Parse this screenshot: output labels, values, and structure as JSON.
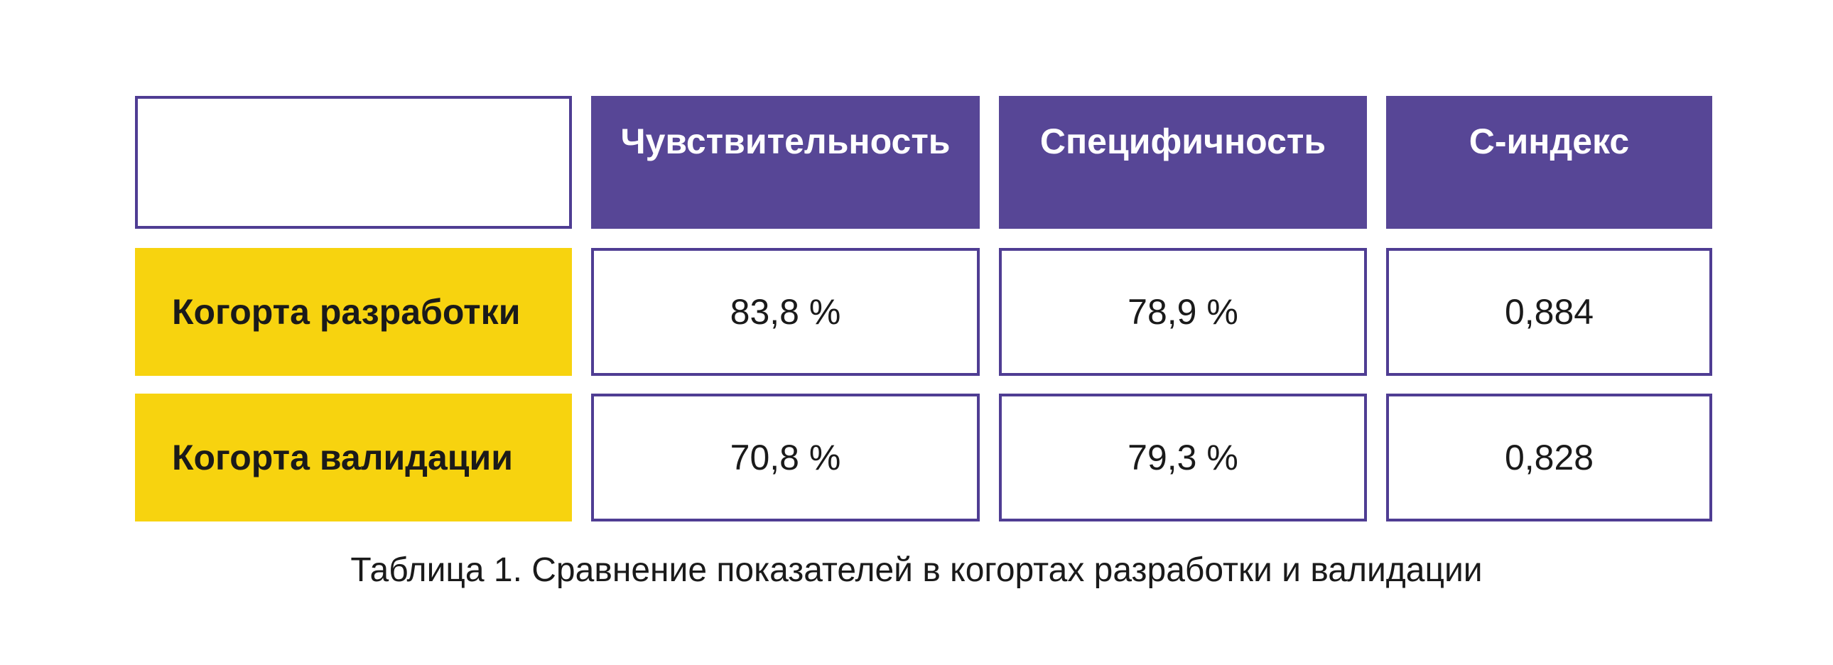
{
  "table": {
    "columns": [
      "Чувствительность",
      "Специфичность",
      "C-индекс"
    ],
    "rows": [
      {
        "label": "Когорта разработки",
        "values": [
          "83,8 %",
          "78,9 %",
          "0,884"
        ]
      },
      {
        "label": "Когорта валидации",
        "values": [
          "70,8 %",
          "79,3 %",
          "0,828"
        ]
      }
    ]
  },
  "caption": "Таблица 1. Сравнение показателей в когортах разработки и валидации",
  "colors": {
    "header_bg": "#574696",
    "border": "#4f3d93",
    "row_label_bg": "#f7d30f",
    "text": "#1a1a1a"
  }
}
